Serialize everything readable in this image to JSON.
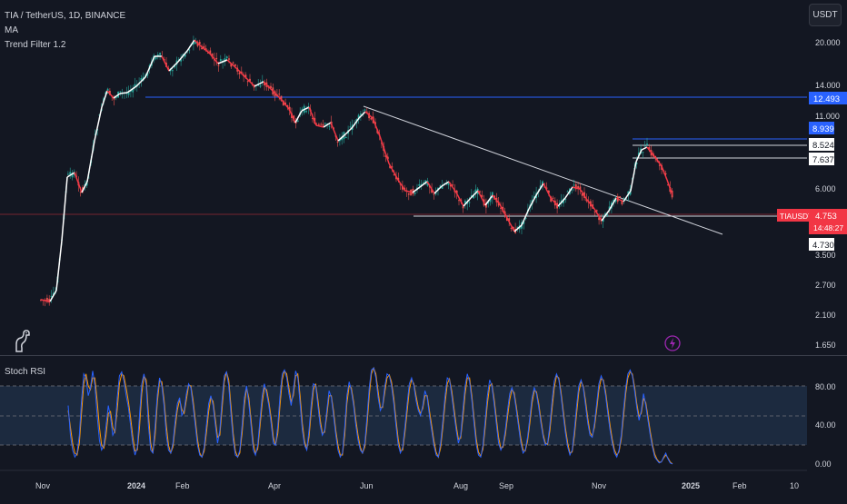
{
  "header": {
    "symbol_line": "TIA / TetherUS, 1D, BINANCE",
    "indicator_ma": "MA",
    "indicator_trend": "Trend Filter 1.2",
    "currency_button": "USDT"
  },
  "price_axis": {
    "ticks": [
      "20.000",
      "14.000",
      "11.000",
      "6.000",
      "3.500",
      "2.700",
      "2.100",
      "1.650"
    ],
    "badges": {
      "level_blue_high": "12.493",
      "level_blue_low": "8.939",
      "level_white_a": "8.524",
      "level_white_b": "7.637",
      "current_price": "4.753",
      "countdown": "14:48:27",
      "level_support": "4.730",
      "symbol_tag": "TIAUSDT"
    }
  },
  "time_axis": {
    "labels": [
      "Nov",
      "2024",
      "Feb",
      "Apr",
      "Jun",
      "Aug",
      "Sep",
      "Nov",
      "2025",
      "Feb",
      "10"
    ]
  },
  "stoch_rsi": {
    "title": "Stoch RSI",
    "ticks": [
      "80.00",
      "40.00",
      "0.00"
    ],
    "k_values": [
      60,
      30,
      15,
      8,
      12,
      30,
      65,
      92,
      88,
      70,
      78,
      95,
      80,
      50,
      25,
      15,
      20,
      40,
      60,
      48,
      30,
      35,
      68,
      90,
      94,
      85,
      70,
      58,
      40,
      20,
      10,
      18,
      50,
      82,
      92,
      80,
      40,
      15,
      12,
      40,
      72,
      88,
      80,
      60,
      30,
      15,
      12,
      22,
      45,
      62,
      68,
      50,
      55,
      72,
      82,
      78,
      60,
      40,
      20,
      10,
      8,
      18,
      40,
      62,
      70,
      60,
      40,
      22,
      35,
      65,
      90,
      94,
      80,
      52,
      25,
      10,
      8,
      15,
      40,
      68,
      80,
      62,
      40,
      15,
      10,
      20,
      45,
      70,
      82,
      72,
      60,
      42,
      22,
      20,
      40,
      70,
      92,
      96,
      88,
      72,
      60,
      75,
      95,
      88,
      62,
      35,
      20,
      15,
      35,
      62,
      82,
      80,
      60,
      40,
      30,
      35,
      55,
      75,
      68,
      50,
      30,
      15,
      8,
      12,
      38,
      70,
      84,
      75,
      60,
      40,
      25,
      15,
      12,
      22,
      48,
      78,
      96,
      98,
      88,
      68,
      55,
      60,
      80,
      92,
      90,
      80,
      62,
      40,
      20,
      12,
      18,
      38,
      62,
      82,
      88,
      80,
      65,
      55,
      50,
      60,
      75,
      68,
      50,
      35,
      20,
      10,
      8,
      22,
      45,
      70,
      88,
      86,
      70,
      52,
      35,
      22,
      30,
      55,
      80,
      92,
      84,
      65,
      42,
      20,
      10,
      8,
      20,
      45,
      70,
      86,
      80,
      62,
      42,
      22,
      15,
      20,
      35,
      55,
      72,
      78,
      70,
      55,
      38,
      22,
      12,
      15,
      28,
      48,
      68,
      78,
      72,
      58,
      42,
      28,
      20,
      22,
      40,
      65,
      85,
      92,
      86,
      70,
      50,
      32,
      18,
      10,
      15,
      35,
      60,
      80,
      86,
      78,
      60,
      42,
      30,
      28,
      42,
      62,
      82,
      90,
      84,
      70,
      52,
      35,
      22,
      12,
      8,
      15,
      30,
      55,
      78,
      92,
      96,
      90,
      75,
      58,
      45,
      55,
      72,
      60,
      45,
      30,
      18,
      8,
      5,
      2,
      3,
      8,
      12,
      6,
      2,
      1
    ],
    "d_values": [
      55,
      38,
      22,
      12,
      10,
      22,
      52,
      82,
      92,
      80,
      76,
      88,
      88,
      65,
      38,
      20,
      17,
      30,
      52,
      54,
      38,
      33,
      56,
      82,
      92,
      90,
      78,
      64,
      48,
      28,
      14,
      15,
      38,
      72,
      90,
      86,
      52,
      22,
      12,
      30,
      64,
      85,
      84,
      66,
      40,
      20,
      12,
      18,
      38,
      56,
      66,
      56,
      52,
      66,
      80,
      80,
      66,
      46,
      26,
      12,
      8,
      14,
      32,
      54,
      68,
      64,
      46,
      28,
      30,
      56,
      84,
      94,
      86,
      60,
      32,
      14,
      8,
      12,
      32,
      60,
      78,
      68,
      46,
      22,
      12,
      16,
      38,
      62,
      78,
      76,
      64,
      48,
      28,
      20,
      32,
      60,
      86,
      95,
      92,
      78,
      64,
      70,
      90,
      92,
      70,
      42,
      24,
      16,
      28,
      54,
      76,
      82,
      66,
      46,
      32,
      33,
      50,
      70,
      70,
      55,
      35,
      20,
      10,
      10,
      30,
      62,
      80,
      78,
      64,
      46,
      30,
      18,
      12,
      18,
      40,
      70,
      92,
      98,
      92,
      74,
      58,
      58,
      74,
      88,
      91,
      84,
      68,
      46,
      26,
      14,
      15,
      32,
      54,
      76,
      86,
      82,
      70,
      58,
      52,
      57,
      70,
      70,
      55,
      40,
      25,
      13,
      8,
      17,
      38,
      62,
      82,
      87,
      75,
      58,
      40,
      26,
      27,
      47,
      72,
      88,
      88,
      70,
      48,
      26,
      13,
      9,
      16,
      38,
      62,
      80,
      82,
      67,
      48,
      28,
      17,
      18,
      30,
      48,
      66,
      76,
      73,
      59,
      42,
      27,
      15,
      14,
      24,
      42,
      62,
      75,
      74,
      62,
      46,
      31,
      22,
      21,
      34,
      57,
      78,
      90,
      88,
      74,
      55,
      37,
      22,
      12,
      13,
      29,
      52,
      74,
      84,
      80,
      65,
      47,
      33,
      29,
      38,
      56,
      76,
      87,
      86,
      74,
      57,
      40,
      26,
      15,
      10,
      13,
      26,
      48,
      72,
      88,
      94,
      92,
      79,
      62,
      49,
      52,
      67,
      63,
      49,
      34,
      21,
      11,
      6,
      3,
      3,
      7,
      10,
      7,
      3,
      1
    ]
  }
}
